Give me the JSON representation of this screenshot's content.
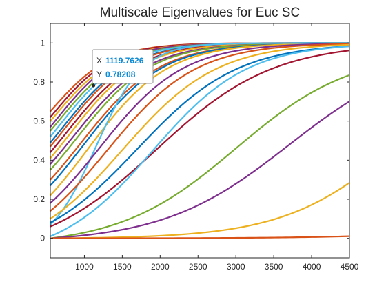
{
  "window": {
    "background": "#ffffff"
  },
  "chart_data": {
    "type": "line",
    "title": "Multiscale Eigenvalues for Euc SC",
    "xlabel": "",
    "ylabel": "",
    "xlim": [
      550,
      4500
    ],
    "ylim": [
      -0.1,
      1.1
    ],
    "xticks": [
      1000,
      1500,
      2000,
      2500,
      3000,
      3500,
      4000,
      4500
    ],
    "xtick_labels": [
      "1000",
      "1500",
      "2000",
      "2500",
      "3000",
      "3500",
      "4000",
      "4500"
    ],
    "yticks": [
      0,
      0.2,
      0.4,
      0.6,
      0.8,
      1
    ],
    "ytick_labels": [
      "0",
      "0.2",
      "0.4",
      "0.6",
      "0.8",
      "1"
    ],
    "grid": false,
    "legend": "none",
    "series_model": "logistic",
    "series": [
      {
        "color": "#D95319",
        "x0": 550,
        "k": 0.0025,
        "y0": 0.65
      },
      {
        "color": "#A2142F",
        "x0": 570,
        "k": 0.0025,
        "y0": 0.62
      },
      {
        "color": "#EDB120",
        "x0": 590,
        "k": 0.0024,
        "y0": 0.6
      },
      {
        "color": "#7E2F8E",
        "x0": 610,
        "k": 0.0024,
        "y0": 0.57
      },
      {
        "color": "#77AC30",
        "x0": 640,
        "k": 0.0023,
        "y0": 0.55
      },
      {
        "color": "#4DBEEE",
        "x0": 670,
        "k": 0.0023,
        "y0": 0.52
      },
      {
        "color": "#0072BD",
        "x0": 700,
        "k": 0.0022,
        "y0": 0.49
      },
      {
        "color": "#D95319",
        "x0": 730,
        "k": 0.0022,
        "y0": 0.47
      },
      {
        "color": "#A2142F",
        "x0": 760,
        "k": 0.0021,
        "y0": 0.44
      },
      {
        "color": "#EDB120",
        "x0": 800,
        "k": 0.0021,
        "y0": 0.41
      },
      {
        "color": "#7E2F8E",
        "x0": 850,
        "k": 0.002,
        "y0": 0.38
      },
      {
        "color": "#77AC30",
        "x0": 900,
        "k": 0.002,
        "y0": 0.35
      },
      {
        "color": "#D95319",
        "x0": 950,
        "k": 0.0019,
        "y0": 0.3
      },
      {
        "color": "#0072BD",
        "x0": 980,
        "k": 0.0019,
        "y0": 0.27
      },
      {
        "color": "#EDB120",
        "x0": 1050,
        "k": 0.0019,
        "y0": 0.22
      },
      {
        "color": "#4DBEEE",
        "x0": 1150,
        "k": 0.0032,
        "y0": 0.07
      },
      {
        "color": "#7E2F8E",
        "x0": 1200,
        "k": 0.0018,
        "y0": 0.18
      },
      {
        "color": "#D95319",
        "x0": 1300,
        "k": 0.0017,
        "y0": 0.14
      },
      {
        "color": "#EDB120",
        "x0": 1500,
        "k": 0.0016,
        "y0": 0.1
      },
      {
        "color": "#0072BD",
        "x0": 1700,
        "k": 0.0015,
        "y0": 0.08
      },
      {
        "color": "#A2142F",
        "x0": 1950,
        "k": 0.0013,
        "y0": 0.06
      },
      {
        "color": "#4DBEEE",
        "x0": 1900,
        "k": 0.0016,
        "y0": 0.01
      },
      {
        "color": "#77AC30",
        "x0": 3000,
        "k": 0.0013,
        "y0": 0.0
      },
      {
        "color": "#7E2F8E",
        "x0": 3700,
        "k": 0.0012,
        "y0": 0.0
      },
      {
        "color": "#EDB120",
        "x0": 5200,
        "k": 0.0013,
        "y0": 0.0
      },
      {
        "color": "#D95319",
        "x0": 9000,
        "k": 0.001,
        "y0": 0.0
      }
    ]
  },
  "datatip": {
    "x_label": "X",
    "x_value": "1119.7626",
    "y_label": "Y",
    "y_value": "0.78208",
    "x": 1119.7626,
    "y": 0.78208,
    "value_color": "#0E8BD4"
  }
}
